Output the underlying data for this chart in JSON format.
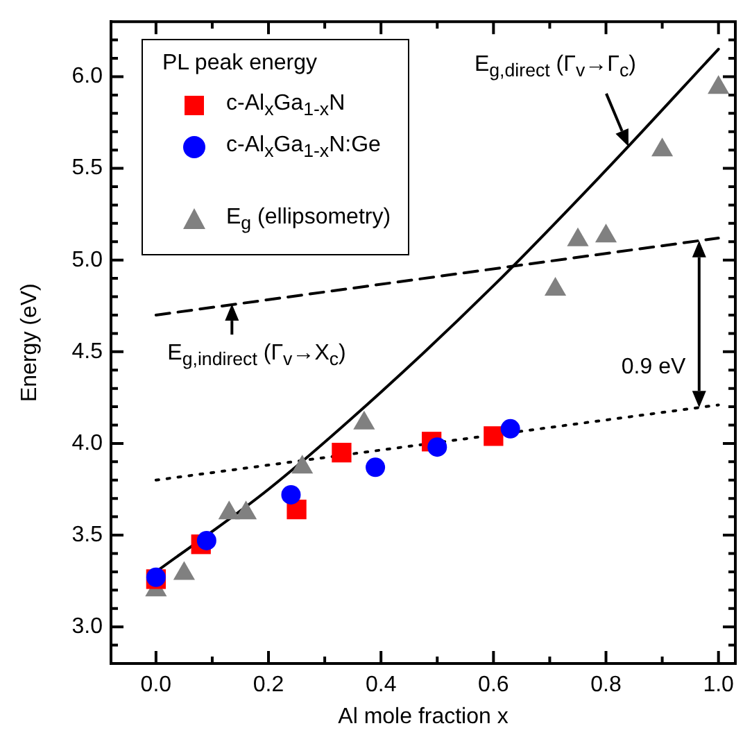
{
  "chart_data": {
    "type": "scatter",
    "xlabel": "Al mole fraction x",
    "ylabel": "Energy (eV)",
    "legend_title": "PL peak energy",
    "legend": "top left",
    "grid": false,
    "xlim": [
      -0.08,
      1.03
    ],
    "ylim": [
      2.8,
      6.3
    ],
    "xticks": [
      {
        "value": 0,
        "label": "0.0"
      },
      {
        "value": 0.1,
        "label": null
      },
      {
        "value": 0.2,
        "label": "0.2"
      },
      {
        "value": 0.3,
        "label": null
      },
      {
        "value": 0.4,
        "label": "0.4"
      },
      {
        "value": 0.5,
        "label": null
      },
      {
        "value": 0.6,
        "label": "0.6"
      },
      {
        "value": 0.7,
        "label": null
      },
      {
        "value": 0.8,
        "label": "0.8"
      },
      {
        "value": 0.9,
        "label": null
      },
      {
        "value": 1,
        "label": "1.0"
      }
    ],
    "yticks": [
      {
        "value": 2.9,
        "label": null
      },
      {
        "value": 3,
        "label": "3.0"
      },
      {
        "value": 3.1,
        "label": null
      },
      {
        "value": 3.2,
        "label": null
      },
      {
        "value": 3.3,
        "label": null
      },
      {
        "value": 3.4,
        "label": null
      },
      {
        "value": 3.5,
        "label": "3.5"
      },
      {
        "value": 3.6,
        "label": null
      },
      {
        "value": 3.7,
        "label": null
      },
      {
        "value": 3.8,
        "label": null
      },
      {
        "value": 3.9,
        "label": null
      },
      {
        "value": 4,
        "label": "4.0"
      },
      {
        "value": 4.1,
        "label": null
      },
      {
        "value": 4.2,
        "label": null
      },
      {
        "value": 4.3,
        "label": null
      },
      {
        "value": 4.4,
        "label": null
      },
      {
        "value": 4.5,
        "label": "4.5"
      },
      {
        "value": 4.6,
        "label": null
      },
      {
        "value": 4.7,
        "label": null
      },
      {
        "value": 4.8,
        "label": null
      },
      {
        "value": 4.9,
        "label": null
      },
      {
        "value": 5,
        "label": "5.0"
      },
      {
        "value": 5.1,
        "label": null
      },
      {
        "value": 5.2,
        "label": null
      },
      {
        "value": 5.3,
        "label": null
      },
      {
        "value": 5.4,
        "label": null
      },
      {
        "value": 5.5,
        "label": "5.5"
      },
      {
        "value": 5.6,
        "label": null
      },
      {
        "value": 5.7,
        "label": null
      },
      {
        "value": 5.8,
        "label": null
      },
      {
        "value": 5.9,
        "label": null
      },
      {
        "value": 6,
        "label": "6.0"
      },
      {
        "value": 6.1,
        "label": null
      },
      {
        "value": 6.2,
        "label": null
      }
    ],
    "series": [
      {
        "type": "line",
        "color": "#000000",
        "marker": "none",
        "line_style": "solid",
        "x": [
          0,
          0.2,
          0.4,
          0.6,
          0.8,
          1.0
        ],
        "values": [
          3.3,
          3.75,
          4.28,
          4.86,
          5.49,
          6.15
        ]
      },
      {
        "type": "line",
        "color": "#000000",
        "marker": "none",
        "line_style": "dashed",
        "x": [
          0,
          1
        ],
        "values": [
          4.7,
          5.12
        ]
      },
      {
        "type": "line",
        "color": "#000000",
        "marker": "none",
        "line_style": "dotted",
        "x": [
          0,
          1
        ],
        "values": [
          3.8,
          4.21
        ]
      },
      {
        "name": "c-Al$_{x}$Ga$_{1-x}$N",
        "color": "#ff0000",
        "marker": "square",
        "x": [
          0,
          0.08,
          0.25,
          0.33,
          0.49,
          0.6
        ],
        "values": [
          3.26,
          3.45,
          3.64,
          3.95,
          4.01,
          4.04
        ]
      },
      {
        "name": "c-Al$_{x}$Ga$_{1-x}$N:Ge",
        "color": "#0000ff",
        "marker": "circle",
        "x": [
          0,
          0.09,
          0.24,
          0.39,
          0.5,
          0.63
        ],
        "values": [
          3.27,
          3.47,
          3.72,
          3.87,
          3.98,
          4.08
        ]
      },
      {
        "name": "E$_{g}$ (ellipsometry)",
        "color": "#808080",
        "marker": "triangle",
        "x": [
          0,
          0.05,
          0.13,
          0.16,
          0.26,
          0.37,
          0.71,
          0.75,
          0.8,
          0.9,
          1.0
        ],
        "values": [
          3.2,
          3.29,
          3.62,
          3.62,
          3.87,
          4.11,
          4.84,
          5.11,
          5.13,
          5.6,
          5.94
        ]
      }
    ],
    "annotations": [
      {
        "text": "E$_{g,direct}$ (Γ$_{v}$→Γ$_{c}$)",
        "x": 0.84,
        "y": 5.62
      },
      {
        "text": "E$_{g,indirect}$ (Γ$_{v}$→X$_{c}$)",
        "x": 0.135,
        "y": 4.76
      },
      "0.9 eV"
    ]
  }
}
